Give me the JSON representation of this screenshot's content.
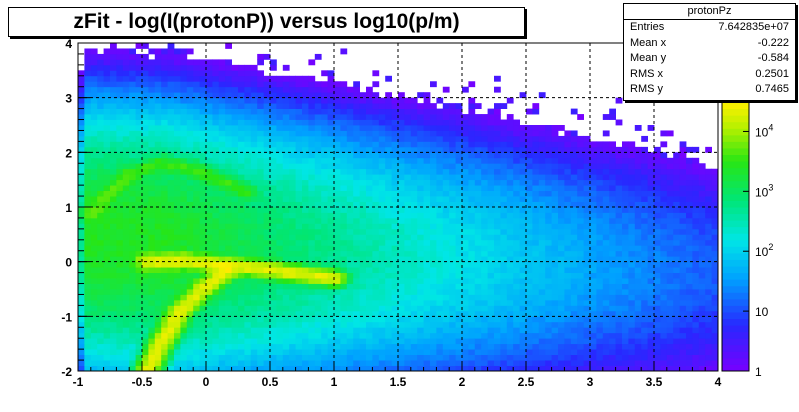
{
  "chart_data": {
    "type": "heatmap",
    "title": "zFit - log(I(protonP)) versus log10(p/m)",
    "xlabel": "",
    "ylabel": "",
    "xlim": [
      -1,
      4
    ],
    "ylim": [
      -2,
      4
    ],
    "x_ticks": [
      "-1",
      "-0.5",
      "0",
      "0.5",
      "1",
      "1.5",
      "2",
      "2.5",
      "3",
      "3.5",
      "4"
    ],
    "y_ticks": [
      "-2",
      "-1",
      "0",
      "1",
      "2",
      "3",
      "4"
    ],
    "grid": true,
    "z_scale": "log",
    "z_range": [
      1,
      300000
    ],
    "palette_labels": [
      "1",
      "10",
      "10^2",
      "10^3",
      "10^4"
    ],
    "palette_exponent_note": "5",
    "bands": [
      {
        "name": "",
        "points": [
          [
            -0.45,
            0
          ],
          [
            -0.2,
            0.02
          ],
          [
            0.1,
            -0.05
          ],
          [
            0.5,
            -0.15
          ],
          [
            1.0,
            -0.3
          ]
        ],
        "peak": 20000
      },
      {
        "name": "",
        "points": [
          [
            -0.45,
            -1.95
          ],
          [
            -0.35,
            -1.5
          ],
          [
            -0.2,
            -0.9
          ],
          [
            0.0,
            -0.45
          ],
          [
            0.15,
            -0.2
          ]
        ],
        "peak": 20000
      },
      {
        "name": "",
        "points": [
          [
            -0.9,
            0.9
          ],
          [
            -0.6,
            1.6
          ],
          [
            -0.35,
            1.8
          ],
          [
            -0.1,
            1.7
          ],
          [
            0.3,
            1.3
          ]
        ],
        "peak": 3000
      }
    ],
    "stats": {
      "name": "protonPz",
      "rows": [
        {
          "label": "Entries",
          "value": "7.642835e+07"
        },
        {
          "label": "Mean x",
          "value": "-0.222"
        },
        {
          "label": "Mean y",
          "value": "-0.584"
        },
        {
          "label": "RMS x",
          "value": "0.2501"
        },
        {
          "label": "RMS y",
          "value": "0.7465"
        }
      ]
    }
  }
}
